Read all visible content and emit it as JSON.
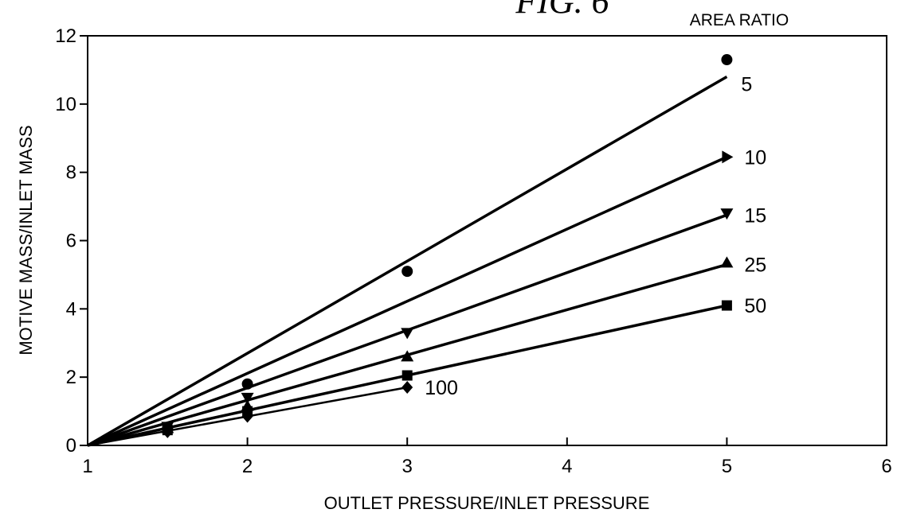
{
  "figure_title": "FIG. 6",
  "legend_title": "AREA RATIO",
  "chart_data": {
    "type": "scatter",
    "xlabel": "OUTLET PRESSURE/INLET PRESSURE",
    "ylabel": "MOTIVE MASS/INLET MASS",
    "xlim": [
      1,
      6
    ],
    "ylim": [
      0,
      12
    ],
    "xticks": [
      "1",
      "2",
      "3",
      "4",
      "5",
      "6"
    ],
    "yticks": [
      "0",
      "2",
      "4",
      "6",
      "8",
      "10",
      "12"
    ],
    "grid": false,
    "legend_placement": "right-of-lines",
    "series": [
      {
        "name": "5",
        "marker": "circle",
        "points": [
          [
            1.5,
            0.5
          ],
          [
            2,
            1.8
          ],
          [
            3,
            5.1
          ],
          [
            5,
            11.3
          ]
        ],
        "fit": [
          [
            1,
            0
          ],
          [
            5,
            10.8
          ]
        ]
      },
      {
        "name": "10",
        "marker": "triangle-right",
        "points": [
          [
            5,
            8.45
          ]
        ],
        "fit": [
          [
            1,
            0
          ],
          [
            5,
            8.45
          ]
        ]
      },
      {
        "name": "15",
        "marker": "triangle-down",
        "points": [
          [
            1.5,
            0.55
          ],
          [
            2,
            1.4
          ],
          [
            3,
            3.3
          ],
          [
            5,
            6.8
          ]
        ],
        "fit": [
          [
            1,
            0
          ],
          [
            5,
            6.75
          ]
        ]
      },
      {
        "name": "25",
        "marker": "triangle-up",
        "points": [
          [
            1.5,
            0.5
          ],
          [
            2,
            1.15
          ],
          [
            3,
            2.6
          ],
          [
            5,
            5.35
          ]
        ],
        "fit": [
          [
            1,
            0
          ],
          [
            5,
            5.3
          ]
        ]
      },
      {
        "name": "50",
        "marker": "square",
        "points": [
          [
            1.5,
            0.45
          ],
          [
            2,
            1.0
          ],
          [
            3,
            2.05
          ],
          [
            5,
            4.1
          ]
        ],
        "fit": [
          [
            1,
            0
          ],
          [
            5,
            4.1
          ]
        ]
      },
      {
        "name": "100",
        "marker": "diamond",
        "points": [
          [
            1.5,
            0.4
          ],
          [
            2,
            0.85
          ],
          [
            3,
            1.7
          ]
        ],
        "fit": [
          [
            1,
            0
          ],
          [
            3,
            1.7
          ]
        ]
      }
    ]
  }
}
